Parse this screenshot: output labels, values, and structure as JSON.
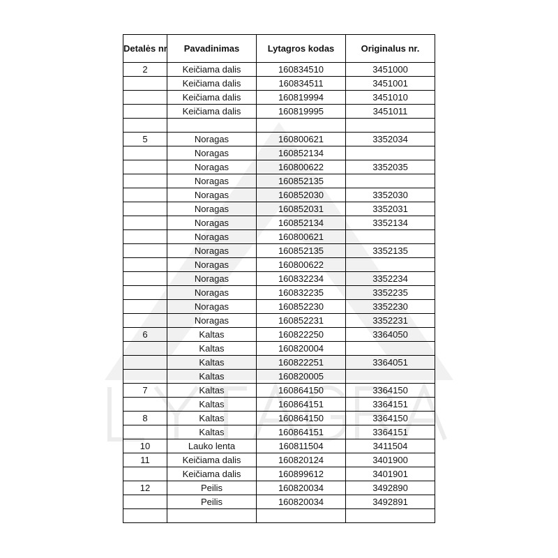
{
  "watermark": {
    "logo_text": "LYTAGRA",
    "color": "#efefef"
  },
  "table": {
    "headers": [
      "Detalės nr.",
      "Pavadinimas",
      "Lytagros kodas",
      "Originalus nr."
    ],
    "rows": [
      [
        "2",
        "Keičiama dalis",
        "160834510",
        "3451000"
      ],
      [
        "",
        "Keičiama dalis",
        "160834511",
        "3451001"
      ],
      [
        "",
        "Keičiama dalis",
        "160819994",
        "3451010"
      ],
      [
        "",
        "Keičiama dalis",
        "160819995",
        "3451011"
      ],
      [
        "",
        "",
        "",
        ""
      ],
      [
        "5",
        "Noragas",
        "160800621",
        "3352034"
      ],
      [
        "",
        "Noragas",
        "160852134",
        ""
      ],
      [
        "",
        "Noragas",
        "160800622",
        "3352035"
      ],
      [
        "",
        "Noragas",
        "160852135",
        ""
      ],
      [
        "",
        "Noragas",
        "160852030",
        "3352030"
      ],
      [
        "",
        "Noragas",
        "160852031",
        "3352031"
      ],
      [
        "",
        "Noragas",
        "160852134",
        "3352134"
      ],
      [
        "",
        "Noragas",
        "160800621",
        ""
      ],
      [
        "",
        "Noragas",
        "160852135",
        "3352135"
      ],
      [
        "",
        "Noragas",
        "160800622",
        ""
      ],
      [
        "",
        "Noragas",
        "160832234",
        "3352234"
      ],
      [
        "",
        "Noragas",
        "160832235",
        "3352235"
      ],
      [
        "",
        "Noragas",
        "160852230",
        "3352230"
      ],
      [
        "",
        "Noragas",
        "160852231",
        "3352231"
      ],
      [
        "6",
        "Kaltas",
        "160822250",
        "3364050"
      ],
      [
        "",
        "Kaltas",
        "160820004",
        ""
      ],
      [
        "",
        "Kaltas",
        "160822251",
        "3364051"
      ],
      [
        "",
        "Kaltas",
        "160820005",
        ""
      ],
      [
        "7",
        "Kaltas",
        "160864150",
        "3364150"
      ],
      [
        "",
        "Kaltas",
        "160864151",
        "3364151"
      ],
      [
        "8",
        "Kaltas",
        "160864150",
        "3364150"
      ],
      [
        "",
        "Kaltas",
        "160864151",
        "3364151"
      ],
      [
        "10",
        "Lauko lenta",
        "160811504",
        "3411504"
      ],
      [
        "11",
        "Keičiama dalis",
        "160820124",
        "3401900"
      ],
      [
        "",
        "Keičiama dalis",
        "160899612",
        "3401901"
      ],
      [
        "12",
        "Peilis",
        "160820034",
        "3492890"
      ],
      [
        "",
        "Peilis",
        "160820034",
        "3492891"
      ],
      [
        "",
        "",
        "",
        ""
      ]
    ]
  }
}
